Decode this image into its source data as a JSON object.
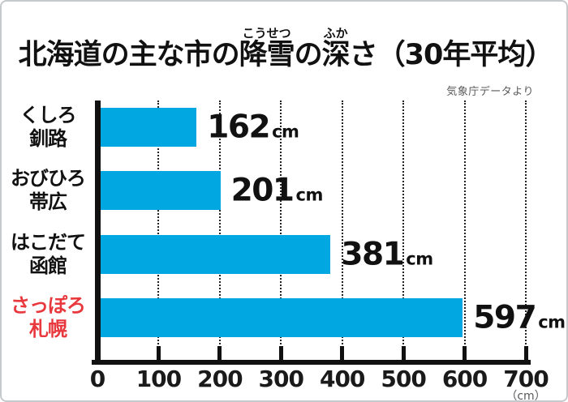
{
  "header": {
    "title_segments": [
      {
        "text": "北海道の主な市の",
        "ruby": ""
      },
      {
        "text": "降雪",
        "ruby": "こうせつ"
      },
      {
        "text": "の",
        "ruby": ""
      },
      {
        "text": "深",
        "ruby": "ふか"
      },
      {
        "text": "さ（30年平均）",
        "ruby": ""
      }
    ],
    "source": "気象庁データより"
  },
  "chart_data": {
    "type": "bar",
    "orientation": "horizontal",
    "title": "北海道の主な市の降雪の深さ（30年平均）",
    "source": "気象庁データより",
    "categories": [
      "くしろ 釧路",
      "おびひろ 帯広",
      "はこだて 函館",
      "さっぽろ 札幌"
    ],
    "values": [
      162,
      201,
      381,
      597
    ],
    "unit": "cm",
    "rows": [
      {
        "kana": "くしろ",
        "kanji": "釧路",
        "value": 162,
        "highlight": false
      },
      {
        "kana": "おびひろ",
        "kanji": "帯広",
        "value": 201,
        "highlight": false
      },
      {
        "kana": "はこだて",
        "kanji": "函館",
        "value": 381,
        "highlight": false
      },
      {
        "kana": "さっぽろ",
        "kanji": "札幌",
        "value": 597,
        "highlight": true
      }
    ],
    "xlim": [
      0,
      700
    ],
    "xticks": [
      0,
      100,
      200,
      300,
      400,
      500,
      600,
      700
    ],
    "axis_unit_label": "（cm）",
    "grid": "dotted-vertical",
    "legend": "none",
    "bar_color": "#00a7e0",
    "label_color": "#111111",
    "highlight_label_color": "#e8383d",
    "axis_color": "#111111"
  }
}
